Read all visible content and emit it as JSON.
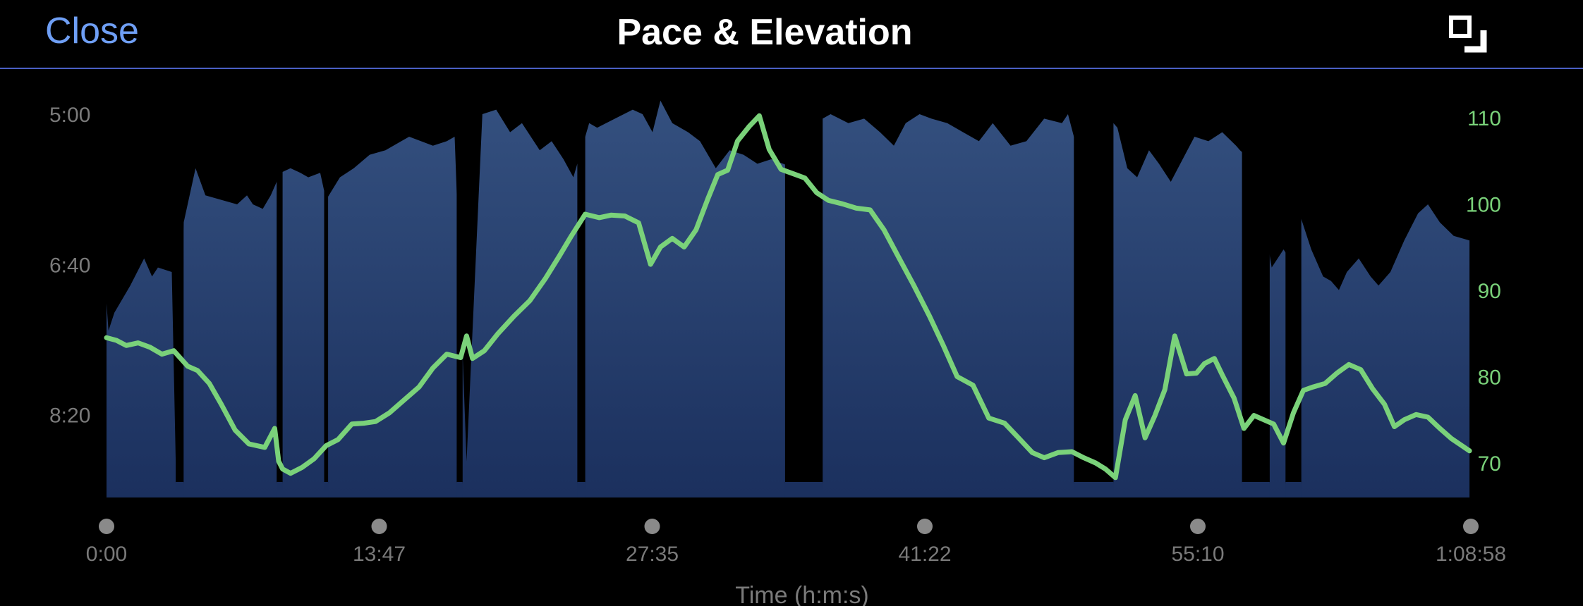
{
  "header": {
    "close_label": "Close",
    "title": "Pace & Elevation",
    "expand_icon": "expand-icon"
  },
  "colors": {
    "background": "#000000",
    "accent": "#6f9ff5",
    "divider": "#4a5fc4",
    "pace_fill_top": "#34507f",
    "pace_fill_bottom": "#1b305e",
    "elevation_line": "#7ad27a",
    "axis_text": "#7a7a7a",
    "elevation_axis_text": "#7ad27a",
    "dot": "#8a8a8a"
  },
  "chart_data": {
    "type": "area",
    "title": "",
    "xlabel": "Time (h:m:s)",
    "x_tick_labels": [
      "0:00",
      "13:47",
      "27:35",
      "41:22",
      "55:10",
      "1:08:58"
    ],
    "x_tick_minutes": [
      0,
      13.783,
      27.583,
      41.367,
      55.167,
      68.967
    ],
    "xlim_minutes": [
      0,
      68.967
    ],
    "y_left": {
      "label": "",
      "tick_labels": [
        "5:00",
        "6:40",
        "8:20"
      ],
      "tick_values_min_per_unit": [
        5.0,
        6.667,
        8.333
      ],
      "lim_min_per_unit": [
        4.75,
        9.25
      ],
      "inverted": true
    },
    "y_right": {
      "label": "",
      "tick_labels": [
        "110",
        "100",
        "90",
        "80",
        "70"
      ],
      "tick_values": [
        110,
        100,
        90,
        80,
        70
      ],
      "lim": [
        66,
        113
      ]
    },
    "grid": false,
    "series": [
      {
        "kind": "pace-area",
        "x": [
          0,
          0.1,
          0.4,
          1.2,
          1.9,
          2.3,
          2.6,
          3.3,
          3.5,
          3.9,
          4.5,
          5.0,
          5.8,
          6.6,
          7.1,
          7.4,
          7.9,
          8.3,
          8.8,
          9.3,
          9.8,
          10.2,
          10.8,
          11.1,
          11.8,
          12.5,
          13.3,
          14.1,
          14.9,
          15.3,
          16.5,
          17.2,
          17.6,
          18.2,
          19.0,
          19.7,
          20.4,
          21.0,
          21.9,
          22.5,
          23.1,
          23.6,
          24.4,
          24.8,
          25.7,
          26.6,
          27.1,
          27.6,
          28.0,
          28.6,
          29.4,
          30.0,
          30.8,
          31.5,
          32.2,
          32.9,
          33.6,
          34.2,
          34.8,
          35.1,
          35.4,
          35.9,
          36.2,
          36.6,
          37.5,
          38.3,
          39.1,
          39.8,
          40.4,
          41.1,
          41.7,
          42.5,
          43.3,
          44.1,
          44.8,
          45.7,
          46.5,
          47.4,
          48.3,
          48.6,
          48.9,
          50.9,
          51.1,
          51.6,
          52.1,
          52.7,
          53.2,
          53.8,
          54.4,
          55.0,
          55.7,
          56.4,
          57.1,
          57.3,
          57.8,
          58.3,
          58.9,
          59.5,
          59.8,
          60.3,
          60.9,
          61.5,
          61.9,
          62.3,
          62.7,
          63.3,
          63.9,
          64.3,
          64.9,
          65.6,
          66.3,
          66.8,
          67.4,
          68.1,
          68.9
        ],
        "values_min_per_unit": [
          7.1,
          7.4,
          7.2,
          6.9,
          6.6,
          6.8,
          6.7,
          6.75,
          8.85,
          6.2,
          5.6,
          5.9,
          5.95,
          6.0,
          5.9,
          6.0,
          6.05,
          5.9,
          5.65,
          5.6,
          5.65,
          5.7,
          5.65,
          5.95,
          5.7,
          5.6,
          5.45,
          5.4,
          5.3,
          5.25,
          5.35,
          5.3,
          5.25,
          8.85,
          5.0,
          4.95,
          5.2,
          5.1,
          5.4,
          5.3,
          5.5,
          5.7,
          5.1,
          5.15,
          5.05,
          4.95,
          5.0,
          5.2,
          4.85,
          5.1,
          5.2,
          5.3,
          5.6,
          5.4,
          5.45,
          5.55,
          5.5,
          5.55,
          5.6,
          5.7,
          5.65,
          5.0,
          5.05,
          5.0,
          5.1,
          5.05,
          5.2,
          5.35,
          5.1,
          5.0,
          5.05,
          5.1,
          5.2,
          5.3,
          5.1,
          5.35,
          5.3,
          5.05,
          5.1,
          5.0,
          5.25,
          5.1,
          5.15,
          5.6,
          5.7,
          5.4,
          5.55,
          5.75,
          5.5,
          5.25,
          5.3,
          5.2,
          5.35,
          5.4,
          5.5,
          5.9,
          6.7,
          6.5,
          6.6,
          6.1,
          6.5,
          6.8,
          6.85,
          6.95,
          6.75,
          6.6,
          6.8,
          6.9,
          6.75,
          6.4,
          6.1,
          6.0,
          6.2,
          6.35,
          6.4
        ],
        "gaps_minutes": [
          [
            3.5,
            3.9
          ],
          [
            8.6,
            8.9
          ],
          [
            11.0,
            11.2
          ],
          [
            17.7,
            18.0
          ],
          [
            23.8,
            24.2
          ],
          [
            34.3,
            36.2
          ],
          [
            48.9,
            50.9
          ],
          [
            57.4,
            58.8
          ],
          [
            59.6,
            60.4
          ]
        ]
      },
      {
        "kind": "elevation-line",
        "x": [
          0,
          0.5,
          1.0,
          1.6,
          2.2,
          2.8,
          3.4,
          4.1,
          4.6,
          5.2,
          5.8,
          6.5,
          7.2,
          8.0,
          8.5,
          8.7,
          8.9,
          9.3,
          9.9,
          10.5,
          11.1,
          11.7,
          12.4,
          13.0,
          13.6,
          14.3,
          15.0,
          15.8,
          16.5,
          17.2,
          17.9,
          18.2,
          18.5,
          19.1,
          19.8,
          20.6,
          21.4,
          22.2,
          22.9,
          23.5,
          24.2,
          24.9,
          25.5,
          26.2,
          26.9,
          27.5,
          28.0,
          28.6,
          29.2,
          29.8,
          30.4,
          30.9,
          31.4,
          31.9,
          32.5,
          33.0,
          33.5,
          34.1,
          34.7,
          35.3,
          35.9,
          36.5,
          37.2,
          37.9,
          38.6,
          39.3,
          40.0,
          40.8,
          41.6,
          42.3,
          43.0,
          43.8,
          44.6,
          45.4,
          46.1,
          46.8,
          47.4,
          48.1,
          48.8,
          49.4,
          50.0,
          50.5,
          51.0,
          51.5,
          52.0,
          52.5,
          53.0,
          53.5,
          54.0,
          54.6,
          55.1,
          55.5,
          56.0,
          56.4,
          57.0,
          57.5,
          58.0,
          58.5,
          59.0,
          59.5,
          60.0,
          60.5,
          61.0,
          61.6,
          62.2,
          62.8,
          63.4,
          64.0,
          64.6,
          65.1,
          65.6,
          66.2,
          66.8,
          67.4,
          68.0,
          68.9
        ],
        "values": [
          84.5,
          84.2,
          83.6,
          83.9,
          83.4,
          82.6,
          83.0,
          81.2,
          80.7,
          79.2,
          76.8,
          73.8,
          72.2,
          71.8,
          74.0,
          70.2,
          69.3,
          68.8,
          69.5,
          70.5,
          72.0,
          72.7,
          74.5,
          74.6,
          74.8,
          75.8,
          77.2,
          78.8,
          81.0,
          82.6,
          82.2,
          84.7,
          82.1,
          83.0,
          85.0,
          87.0,
          88.8,
          91.4,
          94.0,
          96.3,
          98.8,
          98.4,
          98.7,
          98.6,
          97.8,
          93.0,
          95.0,
          96.0,
          95.0,
          97.0,
          100.6,
          103.4,
          103.9,
          107.3,
          109.0,
          110.2,
          106.3,
          104.0,
          103.5,
          103.0,
          101.3,
          100.4,
          100.0,
          99.5,
          99.3,
          97.0,
          94.0,
          90.6,
          87.0,
          83.6,
          80.0,
          79.0,
          75.2,
          74.6,
          72.9,
          71.2,
          70.6,
          71.2,
          71.3,
          70.6,
          70.0,
          69.3,
          68.3,
          75.0,
          77.8,
          72.9,
          75.5,
          78.5,
          84.7,
          80.3,
          80.4,
          81.5,
          82.1,
          80.2,
          77.5,
          74.0,
          75.5,
          75.0,
          74.5,
          72.3,
          75.8,
          78.4,
          78.8,
          79.2,
          80.4,
          81.4,
          80.8,
          78.6,
          76.8,
          74.2,
          75.0,
          75.6,
          75.3,
          74.0,
          72.8,
          71.4
        ]
      }
    ]
  }
}
